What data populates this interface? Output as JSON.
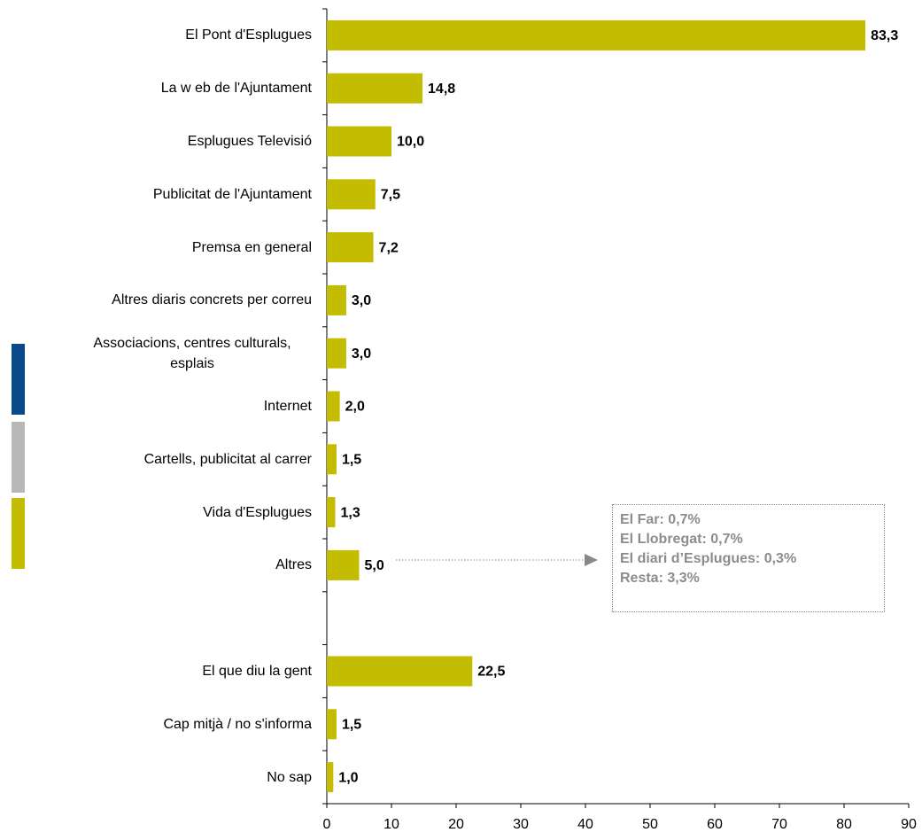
{
  "chart_data": {
    "type": "bar",
    "orientation": "horizontal",
    "categories": [
      "El Pont d'Esplugues",
      "La w eb de l'Ajuntament",
      "Esplugues Televisió",
      "Publicitat de l'Ajuntament",
      "Premsa en general",
      "Altres diaris concrets per correu",
      "Associacions, centres culturals, esplais",
      "Internet",
      "Cartells, publicitat al carrer",
      "Vida d'Esplugues",
      "Altres",
      null,
      "El que diu la gent",
      "Cap mitjà / no s'informa",
      "No sap"
    ],
    "values": [
      83.3,
      14.8,
      10.0,
      7.5,
      7.2,
      3.0,
      3.0,
      2.0,
      1.5,
      1.3,
      5.0,
      null,
      22.5,
      1.5,
      1.0
    ],
    "value_labels": [
      "83,3",
      "14,8",
      "10,0",
      "7,5",
      "7,2",
      "3,0",
      "3,0",
      "2,0",
      "1,5",
      "1,3",
      "5,0",
      null,
      "22,5",
      "1,5",
      "1,0"
    ],
    "color": "#c4bc00",
    "xlim": [
      0,
      90
    ],
    "xticks": [
      0,
      10,
      20,
      30,
      40,
      50,
      60,
      70,
      80,
      90
    ],
    "annotation": [
      "El Far: 0,7%",
      "El Llobregat: 0,7%",
      "El diari d’Esplugues: 0,3%",
      "Resta: 3,3%"
    ]
  }
}
